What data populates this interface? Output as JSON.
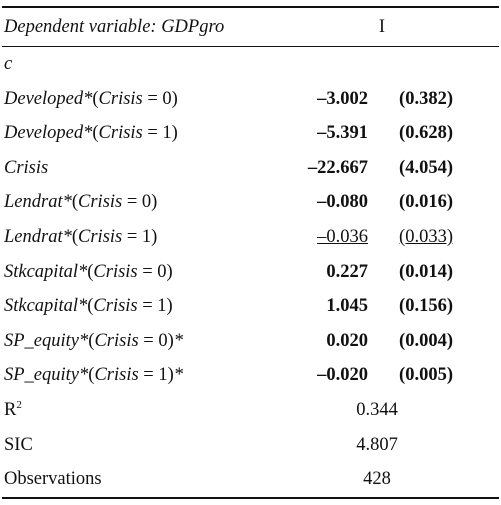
{
  "header": {
    "dependent_label": "Dependent variable: GDPgro",
    "column": "I"
  },
  "constant_row": {
    "label": "c"
  },
  "rows": [
    {
      "var": "Developed",
      "cond": "(Crisis = 0)",
      "suffix": "",
      "coef": "–3.002",
      "se": "(0.382)",
      "bold": true
    },
    {
      "var": "Developed",
      "cond": "(Crisis = 1)",
      "suffix": "",
      "coef": "–5.391",
      "se": "(0.628)",
      "bold": true
    },
    {
      "var": "Crisis",
      "cond": "",
      "suffix": "",
      "coef": "–22.667",
      "se": "(4.054)",
      "bold": true
    },
    {
      "var": "Lendrat",
      "cond": "(Crisis = 0)",
      "suffix": "",
      "coef": "–0.080",
      "se": "(0.016)",
      "bold": true
    },
    {
      "var": "Lendrat",
      "cond": "(Crisis = 1)",
      "suffix": "",
      "coef": "–0.036",
      "se": "(0.033)",
      "bold": false
    },
    {
      "var": "Stkcapital",
      "cond": "(Crisis = 0)",
      "suffix": "",
      "coef": "0.227",
      "se": "(0.014)",
      "bold": true
    },
    {
      "var": "Stkcapital",
      "cond": "(Crisis = 1)",
      "suffix": "",
      "coef": "1.045",
      "se": "(0.156)",
      "bold": true
    },
    {
      "var": "SP_equity",
      "cond": "(Crisis = 0)",
      "suffix": "*",
      "coef": "0.020",
      "se": "(0.004)",
      "bold": true
    },
    {
      "var": "SP_equity",
      "cond": "(Crisis = 1)",
      "suffix": "*",
      "coef": "–0.020",
      "se": "(0.005)",
      "bold": true
    }
  ],
  "stats": [
    {
      "label": "R",
      "sup": "2",
      "value": "0.344"
    },
    {
      "label": "SIC",
      "sup": "",
      "value": "4.807"
    },
    {
      "label": "Observations",
      "sup": "",
      "value": "428"
    }
  ]
}
